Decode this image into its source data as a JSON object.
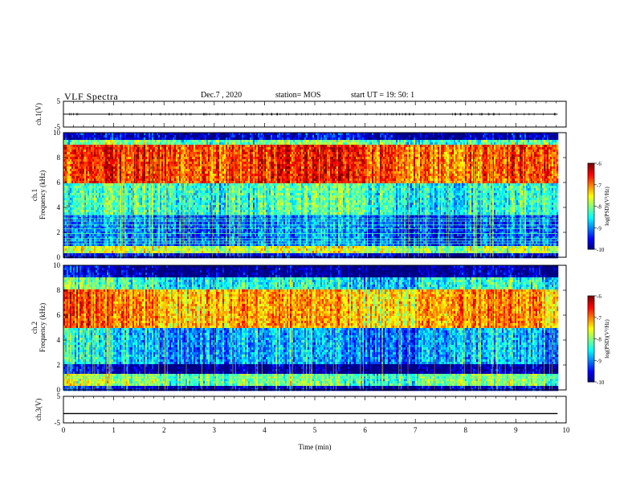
{
  "header": {
    "title": "VLF Spectra",
    "date": "Dec.7 , 2020",
    "station": "station= MOS",
    "start": "start UT = 19: 50: 1"
  },
  "chart_data": [
    {
      "type": "line",
      "panel": "ch1-waveform",
      "ylabel": "ch.1(V)",
      "ylim": [
        -5,
        5
      ],
      "yticks": [
        "5",
        "-5"
      ],
      "xlim": [
        0,
        10
      ],
      "series": [
        {
          "x": [
            0,
            9.83
          ],
          "values": [
            0,
            0
          ]
        }
      ]
    },
    {
      "type": "heatmap",
      "panel": "ch1-spectrogram",
      "ylabel": "ch.1 Frequency (kHz)",
      "ylim": [
        0,
        10
      ],
      "yticks": [
        "0",
        "2",
        "4",
        "6",
        "8",
        "10"
      ],
      "xlim": [
        0,
        10
      ],
      "data_xmax": 9.83,
      "colorbar": {
        "label": "log(PSD)(V²/Hz)",
        "ticks": [
          "-6",
          "-7",
          "-8",
          "-9",
          "-10"
        ],
        "range": [
          -10,
          -6
        ]
      },
      "bands": [
        {
          "fmin": 0,
          "fmax": 0.3,
          "level": -9.7
        },
        {
          "fmin": 0.3,
          "fmax": 1.0,
          "level": -7.8
        },
        {
          "fmin": 1.0,
          "fmax": 3.5,
          "level": -9.2
        },
        {
          "fmin": 3.5,
          "fmax": 6.0,
          "level": -8.4
        },
        {
          "fmin": 6.0,
          "fmax": 9.0,
          "level": -6.8
        },
        {
          "fmin": 9.0,
          "fmax": 9.5,
          "level": -8.2
        },
        {
          "fmin": 9.5,
          "fmax": 10,
          "level": -9.8
        }
      ],
      "lines_khz": [
        1.1,
        1.3,
        1.5,
        1.9,
        2.3,
        2.6,
        2.9,
        3.1,
        3.4
      ]
    },
    {
      "type": "heatmap",
      "panel": "ch2-spectrogram",
      "ylabel": "ch.2 Frequency (kHz)",
      "ylim": [
        0,
        10
      ],
      "yticks": [
        "0",
        "2",
        "4",
        "6",
        "8",
        "10"
      ],
      "xlim": [
        0,
        10
      ],
      "data_xmax": 9.83,
      "colorbar": {
        "label": "log(PSD)(V²/Hz)",
        "ticks": [
          "-6",
          "-7",
          "-8",
          "-9",
          "-10"
        ],
        "range": [
          -10,
          -6
        ]
      },
      "bands": [
        {
          "fmin": 0,
          "fmax": 0.3,
          "level": -9.7
        },
        {
          "fmin": 0.3,
          "fmax": 1.2,
          "level": -8.0
        },
        {
          "fmin": 1.2,
          "fmax": 2.0,
          "level": -9.9
        },
        {
          "fmin": 2.0,
          "fmax": 5.0,
          "level": -8.8
        },
        {
          "fmin": 5.0,
          "fmax": 8.0,
          "level": -7.1
        },
        {
          "fmin": 8.0,
          "fmax": 9.0,
          "level": -8.4
        },
        {
          "fmin": 9.0,
          "fmax": 10,
          "level": -9.9
        }
      ],
      "lines_khz": [
        0.9,
        1.1
      ]
    },
    {
      "type": "line",
      "panel": "ch3-waveform",
      "ylabel": "ch.3(V)",
      "ylim": [
        -5,
        5
      ],
      "yticks": [
        "5",
        "-5"
      ],
      "xlim": [
        0,
        10
      ],
      "xlabel": "Time (min)",
      "xticks": [
        "0",
        "1",
        "2",
        "3",
        "4",
        "5",
        "6",
        "7",
        "8",
        "9",
        "10"
      ],
      "series": [
        {
          "x": [
            0,
            9.83
          ],
          "values": [
            -1.5,
            -1.5
          ]
        }
      ]
    }
  ]
}
